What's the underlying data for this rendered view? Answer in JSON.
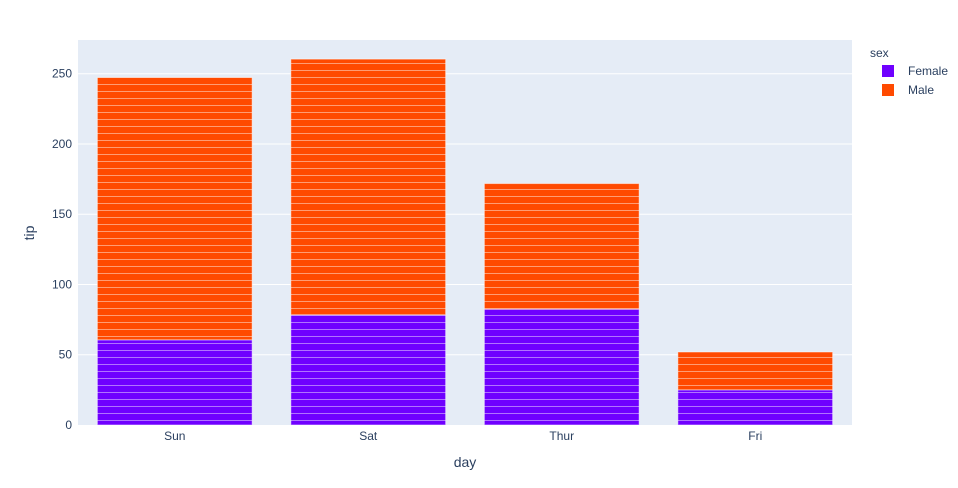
{
  "chart_data": {
    "type": "bar",
    "barmode": "stack",
    "categories": [
      "Sun",
      "Sat",
      "Thur",
      "Fri"
    ],
    "series": [
      {
        "name": "Female",
        "color": "#6f00ff",
        "values": [
          60.61,
          78.45,
          82.42,
          25.03
        ]
      },
      {
        "name": "Male",
        "color": "#ff4a00",
        "values": [
          186.78,
          181.95,
          89.41,
          26.93
        ]
      }
    ],
    "xlabel": "day",
    "ylabel": "tip",
    "ylim": [
      0,
      274
    ],
    "yticks": [
      0,
      50,
      100,
      150,
      200,
      250
    ],
    "grid": true,
    "legend": {
      "title": "sex",
      "placement": "top-right"
    },
    "plot_bg": "#e5ecf6"
  }
}
